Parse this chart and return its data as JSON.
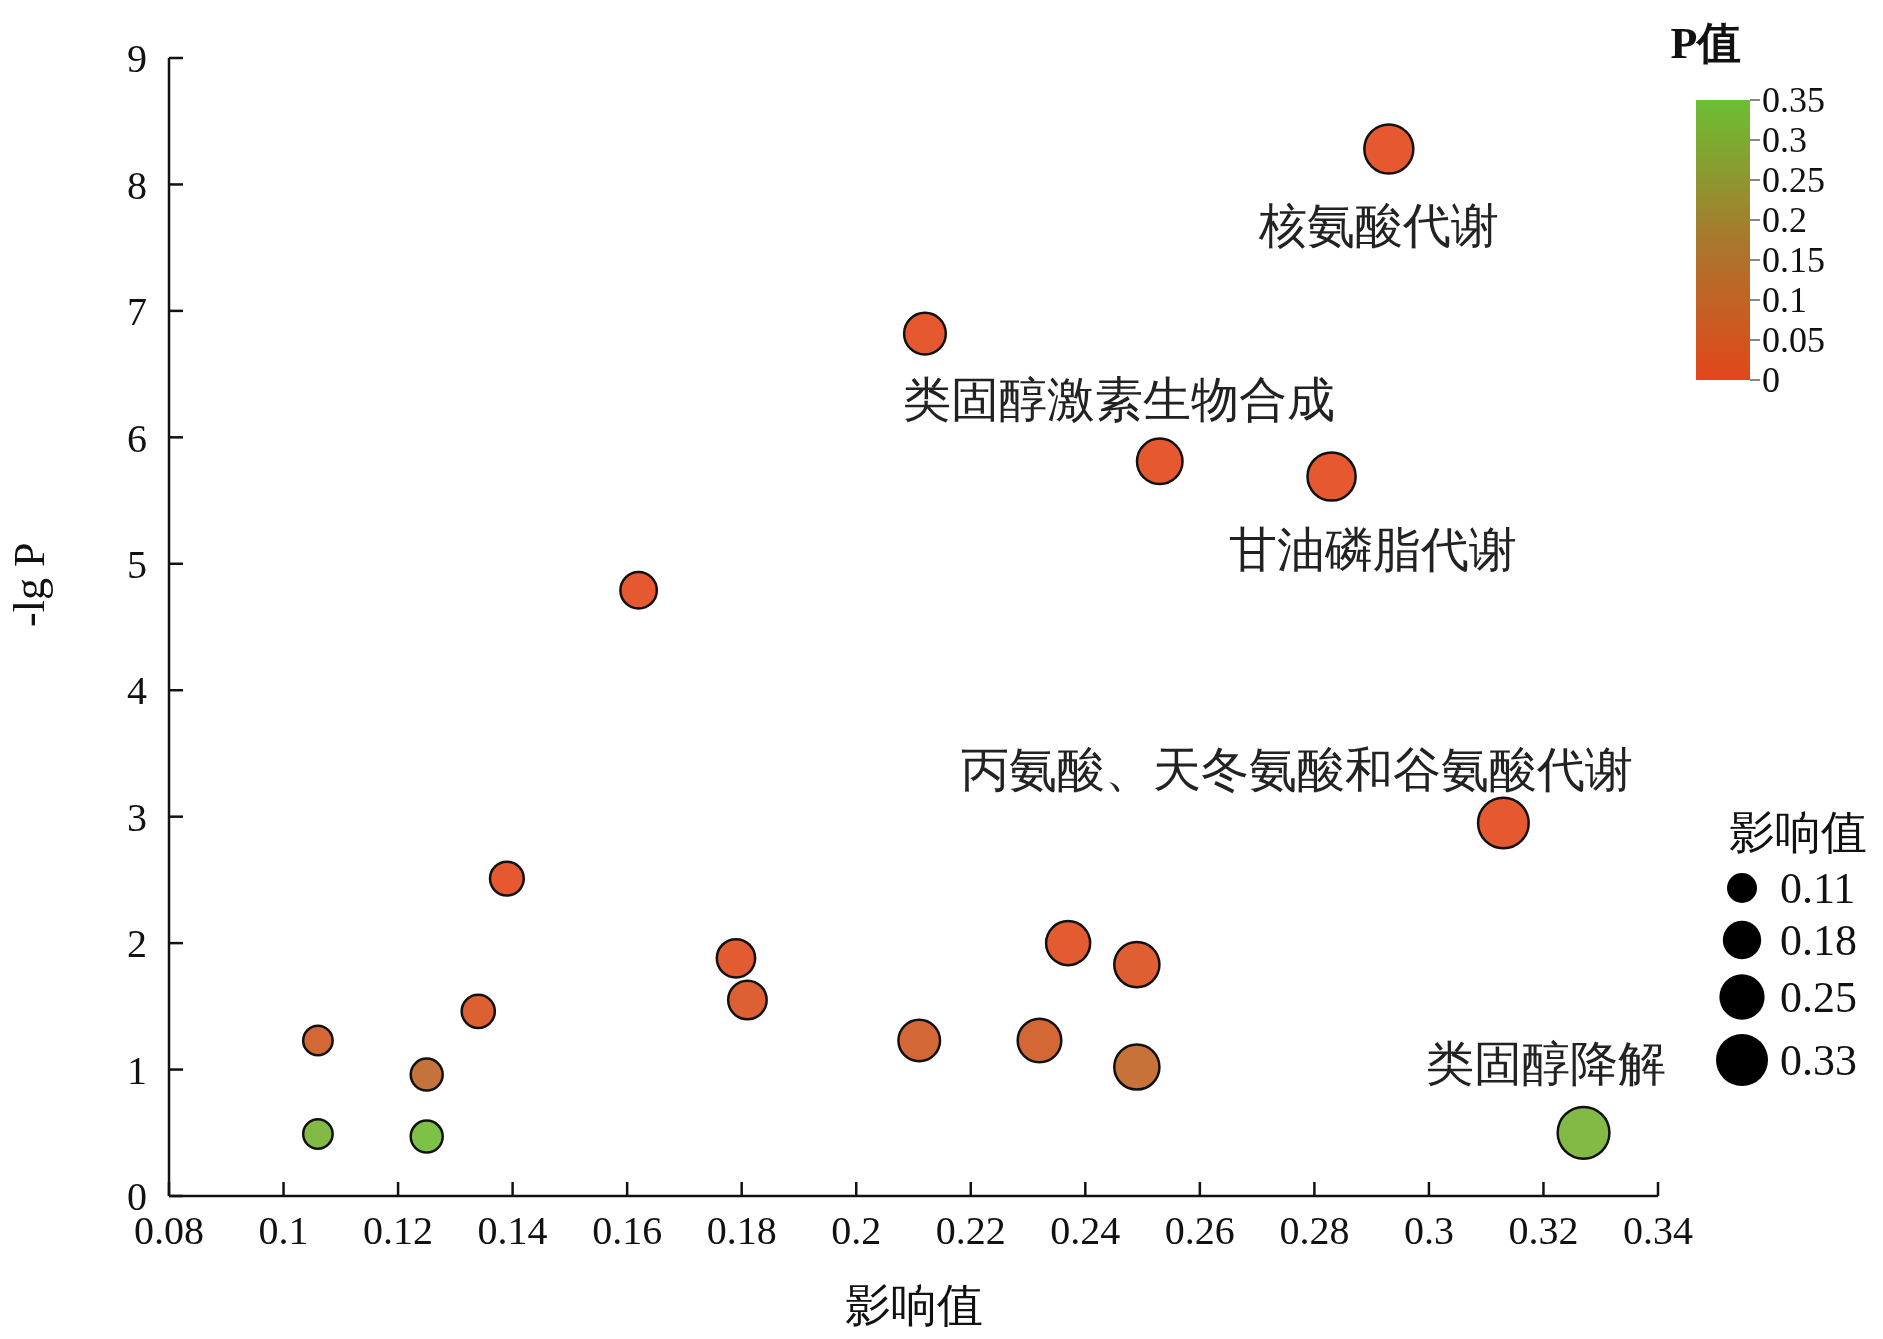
{
  "chart_data": {
    "type": "bubble",
    "xlabel": "影响值",
    "ylabel": "-lg P",
    "clabel": "P值",
    "legend_title": "影响值",
    "x": [
      0.293,
      0.212,
      0.253,
      0.283,
      0.162,
      0.313,
      0.139,
      0.237,
      0.249,
      0.179,
      0.181,
      0.134,
      0.211,
      0.232,
      0.249,
      0.106,
      0.125,
      0.106,
      0.125,
      0.327
    ],
    "values": [
      8.28,
      6.82,
      5.81,
      5.69,
      4.79,
      2.95,
      2.51,
      2.0,
      1.83,
      1.88,
      1.55,
      1.46,
      1.23,
      1.23,
      1.02,
      1.23,
      0.96,
      0.49,
      0.47,
      0.5
    ],
    "sizes": [
      0.293,
      0.212,
      0.253,
      0.283,
      0.162,
      0.313,
      0.139,
      0.237,
      0.249,
      0.179,
      0.181,
      0.134,
      0.211,
      0.232,
      0.249,
      0.106,
      0.125,
      0.106,
      0.125,
      0.327
    ],
    "cvalues": [
      0,
      0,
      0,
      0,
      0,
      0,
      0,
      0.01,
      0.02,
      0.01,
      0.03,
      0.03,
      0.06,
      0.06,
      0.1,
      0.06,
      0.11,
      0.32,
      0.34,
      0.32
    ],
    "size_legend": [
      0.11,
      0.18,
      0.25,
      0.33
    ],
    "clim": [
      0,
      0.35
    ],
    "cticks": [
      0,
      0.05,
      0.1,
      0.15,
      0.2,
      0.25,
      0.3,
      0.35
    ],
    "xlim": [
      0.08,
      0.34
    ],
    "xticks": [
      0.08,
      0.1,
      0.12,
      0.14,
      0.16,
      0.18,
      0.2,
      0.22,
      0.24,
      0.26,
      0.28,
      0.3,
      0.32,
      0.34
    ],
    "ylim": [
      0,
      9
    ],
    "yticks": [
      0,
      1,
      2,
      3,
      4,
      5,
      6,
      7,
      8,
      9
    ],
    "annotations": [
      {
        "text": "核氨酸代谢",
        "x": 0.293,
        "y": 8.28
      },
      {
        "text": "类固醇激素生物合成",
        "x": 0.212,
        "y": 6.82
      },
      {
        "text": "甘油磷脂代谢",
        "x": 0.283,
        "y": 5.69
      },
      {
        "text": "丙氨酸、天冬氨酸和谷氨酸代谢",
        "x": 0.313,
        "y": 2.95
      },
      {
        "text": "类固醇降解",
        "x": 0.327,
        "y": 0.5
      }
    ],
    "marker": "circle"
  }
}
